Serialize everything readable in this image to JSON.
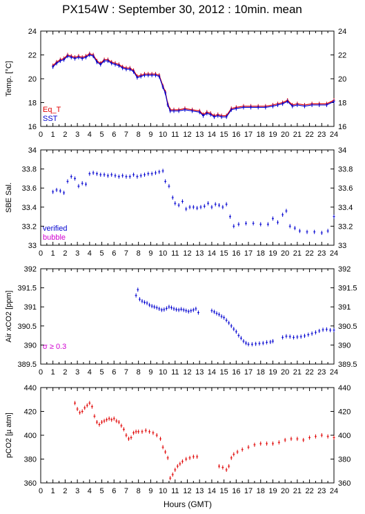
{
  "title": "PX154W : September 30, 2012 : 10min. mean",
  "xlabel": "Hours (GMT)",
  "colors": {
    "red": "#e00000",
    "blue": "#0000d0",
    "magenta": "#d000d0",
    "axis": "#000000"
  },
  "chart_data": [
    {
      "type": "scatter",
      "ylabel": "Temp. [°C]",
      "xlim": [
        0,
        24
      ],
      "ylim": [
        16,
        24
      ],
      "yticks": [
        16,
        18,
        20,
        22,
        24
      ],
      "xticks": [
        0,
        1,
        2,
        3,
        4,
        5,
        6,
        7,
        8,
        9,
        10,
        11,
        12,
        13,
        14,
        15,
        16,
        17,
        18,
        19,
        20,
        21,
        22,
        23,
        24
      ],
      "legend": [
        {
          "label": "Eq_T",
          "color": "red"
        },
        {
          "label": "SST",
          "color": "blue"
        }
      ],
      "legend_position": "bottom-left",
      "series": [
        {
          "name": "Eq_T",
          "color": "red",
          "style": "line-with-errorbars",
          "x": [
            1.0,
            1.3,
            1.6,
            1.9,
            2.2,
            2.5,
            2.8,
            3.1,
            3.4,
            3.7,
            4.0,
            4.3,
            4.6,
            4.9,
            5.2,
            5.5,
            5.8,
            6.1,
            6.4,
            6.7,
            7.0,
            7.3,
            7.6,
            7.9,
            8.2,
            8.5,
            8.8,
            9.1,
            9.4,
            9.7,
            10.0,
            10.2,
            10.4,
            10.6,
            10.9,
            11.3,
            11.8,
            12.4,
            13.0,
            13.3,
            13.6,
            13.9,
            14.2,
            14.5,
            14.8,
            15.2,
            15.6,
            16.0,
            16.6,
            17.2,
            17.8,
            18.4,
            19.0,
            19.4,
            19.8,
            20.2,
            20.6,
            21.0,
            21.6,
            22.2,
            22.8,
            23.4,
            24.0
          ],
          "y": [
            21.1,
            21.4,
            21.6,
            21.7,
            22.0,
            21.9,
            21.8,
            21.9,
            21.8,
            21.9,
            22.1,
            22.0,
            21.5,
            21.3,
            21.6,
            21.6,
            21.4,
            21.3,
            21.2,
            21.0,
            20.9,
            20.9,
            20.7,
            20.2,
            20.3,
            20.4,
            20.4,
            20.4,
            20.4,
            20.3,
            19.4,
            18.9,
            17.9,
            17.4,
            17.4,
            17.4,
            17.5,
            17.4,
            17.3,
            17.0,
            17.2,
            17.1,
            16.9,
            17.0,
            16.9,
            16.9,
            17.5,
            17.6,
            17.7,
            17.7,
            17.7,
            17.7,
            17.8,
            17.9,
            18.0,
            18.2,
            17.8,
            17.9,
            17.8,
            17.9,
            17.9,
            17.9,
            18.2
          ]
        },
        {
          "name": "SST",
          "color": "blue",
          "style": "line-with-errorbars",
          "x": [
            1.0,
            1.3,
            1.6,
            1.9,
            2.2,
            2.5,
            2.8,
            3.1,
            3.4,
            3.7,
            4.0,
            4.3,
            4.6,
            4.9,
            5.2,
            5.5,
            5.8,
            6.1,
            6.4,
            6.7,
            7.0,
            7.3,
            7.6,
            7.9,
            8.2,
            8.5,
            8.8,
            9.1,
            9.4,
            9.7,
            10.0,
            10.2,
            10.4,
            10.6,
            10.9,
            11.3,
            11.8,
            12.4,
            13.0,
            13.3,
            13.6,
            13.9,
            14.2,
            14.5,
            14.8,
            15.2,
            15.6,
            16.0,
            16.6,
            17.2,
            17.8,
            18.4,
            19.0,
            19.4,
            19.8,
            20.2,
            20.6,
            21.0,
            21.6,
            22.2,
            22.8,
            23.4,
            24.0
          ],
          "y": [
            21.0,
            21.3,
            21.5,
            21.6,
            21.9,
            21.8,
            21.7,
            21.8,
            21.7,
            21.8,
            22.0,
            21.9,
            21.4,
            21.2,
            21.5,
            21.5,
            21.3,
            21.2,
            21.1,
            20.9,
            20.8,
            20.8,
            20.6,
            20.1,
            20.2,
            20.3,
            20.3,
            20.3,
            20.3,
            20.2,
            19.3,
            18.8,
            17.8,
            17.3,
            17.3,
            17.3,
            17.4,
            17.3,
            17.2,
            16.9,
            17.1,
            17.0,
            16.8,
            16.9,
            16.8,
            16.8,
            17.4,
            17.5,
            17.6,
            17.6,
            17.6,
            17.6,
            17.7,
            17.8,
            17.9,
            18.1,
            17.7,
            17.8,
            17.7,
            17.8,
            17.8,
            17.8,
            18.1
          ]
        }
      ]
    },
    {
      "type": "scatter",
      "ylabel": "SBE Sal.",
      "xlim": [
        0,
        24
      ],
      "ylim": [
        33,
        34
      ],
      "yticks": [
        33,
        33.2,
        33.4,
        33.6,
        33.8,
        34
      ],
      "xticks": [
        0,
        1,
        2,
        3,
        4,
        5,
        6,
        7,
        8,
        9,
        10,
        11,
        12,
        13,
        14,
        15,
        16,
        17,
        18,
        19,
        20,
        21,
        22,
        23,
        24
      ],
      "legend": [
        {
          "label": "verified",
          "color": "blue"
        },
        {
          "label": "bubble",
          "color": "magenta"
        }
      ],
      "legend_position": "bottom-left",
      "series": [
        {
          "name": "verified",
          "color": "blue",
          "style": "points-with-errorbars",
          "x": [
            1.0,
            1.3,
            1.6,
            1.9,
            2.2,
            2.5,
            2.8,
            3.1,
            3.4,
            3.7,
            4.0,
            4.3,
            4.6,
            4.9,
            5.2,
            5.5,
            5.8,
            6.1,
            6.4,
            6.7,
            7.0,
            7.3,
            7.6,
            7.9,
            8.2,
            8.5,
            8.8,
            9.1,
            9.4,
            9.7,
            10.0,
            10.2,
            10.5,
            10.8,
            11.0,
            11.3,
            11.6,
            11.9,
            12.2,
            12.5,
            12.8,
            13.1,
            13.4,
            13.7,
            14.0,
            14.3,
            14.6,
            14.9,
            15.2,
            15.5,
            15.8,
            16.2,
            16.8,
            17.4,
            18.0,
            18.6,
            19.0,
            19.4,
            19.8,
            20.1,
            20.4,
            20.8,
            21.2,
            21.8,
            22.4,
            23.0,
            23.5,
            24.0
          ],
          "y": [
            33.56,
            33.58,
            33.57,
            33.55,
            33.67,
            33.72,
            33.7,
            33.62,
            33.65,
            33.64,
            33.75,
            33.76,
            33.75,
            33.74,
            33.74,
            33.73,
            33.74,
            33.73,
            33.72,
            33.73,
            33.72,
            33.72,
            33.74,
            33.72,
            33.73,
            33.74,
            33.75,
            33.75,
            33.76,
            33.77,
            33.78,
            33.67,
            33.62,
            33.5,
            33.44,
            33.42,
            33.46,
            33.38,
            33.4,
            33.4,
            33.39,
            33.4,
            33.41,
            33.44,
            33.4,
            33.43,
            33.42,
            33.4,
            33.43,
            33.3,
            33.2,
            33.22,
            33.23,
            33.23,
            33.22,
            33.22,
            33.28,
            33.24,
            33.32,
            33.36,
            33.2,
            33.18,
            33.15,
            33.14,
            33.14,
            33.13,
            33.15,
            33.3
          ]
        }
      ]
    },
    {
      "type": "scatter",
      "ylabel": "Air xCO2 [ppm]",
      "xlim": [
        0,
        24
      ],
      "ylim": [
        389.5,
        392
      ],
      "yticks": [
        389.5,
        390,
        390.5,
        391,
        391.5,
        392
      ],
      "xticks": [
        0,
        1,
        2,
        3,
        4,
        5,
        6,
        7,
        8,
        9,
        10,
        11,
        12,
        13,
        14,
        15,
        16,
        17,
        18,
        19,
        20,
        21,
        22,
        23,
        24
      ],
      "annotation": {
        "text": "σ ≥ 0.3",
        "color": "magenta"
      },
      "series": [
        {
          "name": "",
          "color": "blue",
          "style": "points-with-errorbars",
          "x": [
            7.8,
            7.95,
            8.1,
            8.3,
            8.5,
            8.7,
            8.9,
            9.1,
            9.3,
            9.5,
            9.7,
            9.9,
            10.1,
            10.3,
            10.5,
            10.7,
            10.9,
            11.1,
            11.3,
            11.5,
            11.7,
            11.9,
            12.1,
            12.3,
            12.5,
            12.7,
            12.9,
            14.0,
            14.2,
            14.4,
            14.6,
            14.8,
            15.0,
            15.2,
            15.4,
            15.6,
            15.8,
            16.0,
            16.2,
            16.4,
            16.6,
            16.8,
            17.0,
            17.3,
            17.6,
            17.9,
            18.2,
            18.5,
            18.8,
            19.0,
            19.8,
            20.1,
            20.4,
            20.7,
            21.0,
            21.3,
            21.6,
            21.9,
            22.2,
            22.5,
            22.8,
            23.1,
            23.4,
            23.7,
            24.0
          ],
          "y": [
            391.3,
            391.45,
            391.2,
            391.15,
            391.12,
            391.1,
            391.05,
            391.02,
            391.0,
            390.98,
            390.95,
            390.92,
            390.93,
            390.96,
            391.0,
            390.98,
            390.95,
            390.93,
            390.92,
            390.94,
            390.92,
            390.9,
            390.88,
            390.9,
            390.92,
            390.95,
            390.85,
            390.9,
            390.87,
            390.83,
            390.8,
            390.75,
            390.72,
            390.65,
            390.58,
            390.5,
            390.42,
            390.35,
            390.25,
            390.18,
            390.1,
            390.05,
            390.02,
            390.02,
            390.03,
            390.04,
            390.05,
            390.07,
            390.08,
            390.1,
            390.2,
            390.23,
            390.22,
            390.2,
            390.21,
            390.22,
            390.24,
            390.27,
            390.3,
            390.33,
            390.37,
            390.4,
            390.41,
            390.39,
            390.39
          ]
        }
      ]
    },
    {
      "type": "scatter",
      "ylabel": "pCO2 [µ atm]",
      "xlim": [
        0,
        24
      ],
      "ylim": [
        360,
        440
      ],
      "yticks": [
        360,
        380,
        400,
        420,
        440
      ],
      "xticks": [
        0,
        1,
        2,
        3,
        4,
        5,
        6,
        7,
        8,
        9,
        10,
        11,
        12,
        13,
        14,
        15,
        16,
        17,
        18,
        19,
        20,
        21,
        22,
        23,
        24
      ],
      "series": [
        {
          "name": "",
          "color": "red",
          "style": "points-with-errorbars",
          "x": [
            2.8,
            3.0,
            3.2,
            3.4,
            3.6,
            3.8,
            4.0,
            4.2,
            4.4,
            4.6,
            4.8,
            5.0,
            5.2,
            5.4,
            5.6,
            5.8,
            6.0,
            6.2,
            6.4,
            6.6,
            6.8,
            7.0,
            7.2,
            7.4,
            7.6,
            7.8,
            8.0,
            8.3,
            8.6,
            8.9,
            9.2,
            9.5,
            9.8,
            10.0,
            10.2,
            10.4,
            10.6,
            10.8,
            11.0,
            11.2,
            11.4,
            11.6,
            11.9,
            12.2,
            12.5,
            12.8,
            14.6,
            14.9,
            15.2,
            15.4,
            15.6,
            15.8,
            16.1,
            16.5,
            17.0,
            17.5,
            18.0,
            18.5,
            19.0,
            19.5,
            20.0,
            20.5,
            21.0,
            21.5,
            22.0,
            22.5,
            23.0,
            23.5,
            24.0
          ],
          "y": [
            427,
            422,
            419,
            420,
            423,
            425,
            427,
            424,
            416,
            411,
            409,
            411,
            412,
            413,
            414,
            413,
            414,
            412,
            411,
            408,
            405,
            400,
            397,
            398,
            402,
            403,
            403,
            403,
            404,
            403,
            402,
            400,
            397,
            390,
            386,
            381,
            364,
            367,
            371,
            374,
            376,
            378,
            380,
            381,
            382,
            382,
            374,
            373,
            371,
            374,
            381,
            384,
            386,
            388,
            390,
            392,
            393,
            393,
            393,
            394,
            396,
            397,
            397,
            396,
            398,
            399,
            400,
            399,
            398
          ]
        }
      ]
    }
  ]
}
